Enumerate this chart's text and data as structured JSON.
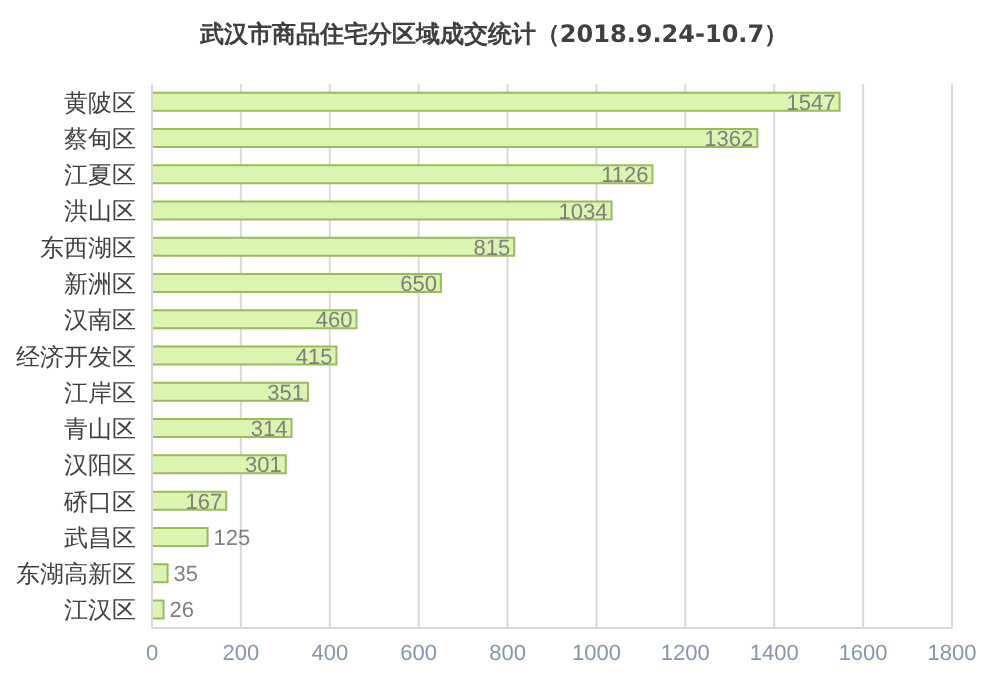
{
  "chart_data": {
    "type": "bar",
    "orientation": "horizontal",
    "title": "武汉市商品住宅分区域成交统计（2018.9.24-10.7）",
    "categories": [
      "黄陂区",
      "蔡甸区",
      "江夏区",
      "洪山区",
      "东西湖区",
      "新洲区",
      "汉南区",
      "经济开发区",
      "江岸区",
      "青山区",
      "汉阳区",
      "硚口区",
      "武昌区",
      "东湖高新区",
      "江汉区"
    ],
    "values": [
      1547,
      1362,
      1126,
      1034,
      815,
      650,
      460,
      415,
      351,
      314,
      301,
      167,
      125,
      35,
      26
    ],
    "color": "#d9f5b0",
    "xlim": [
      0,
      1800
    ],
    "xticks": [
      0,
      200,
      400,
      600,
      800,
      1000,
      1200,
      1400,
      1600,
      1800
    ],
    "grid": "x",
    "data_labels": true
  }
}
